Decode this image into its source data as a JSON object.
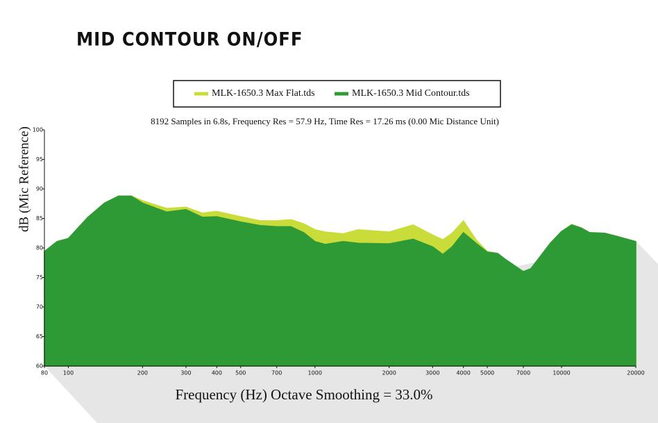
{
  "chart_data": {
    "type": "area",
    "title": "MID CONTOUR ON/OFF",
    "subtitle": "8192 Samples in 6.8s, Frequency Res = 57.9 Hz, Time Res = 17.26 ms (0.00 Mic Distance Unit)",
    "x_label": "Frequency (Hz) Octave Smoothing = 33.0%",
    "y_label": "dB (Mic Reference)",
    "xscale": "log",
    "x": [
      80,
      90,
      100,
      120,
      140,
      160,
      180,
      200,
      250,
      300,
      350,
      400,
      500,
      600,
      700,
      800,
      900,
      1000,
      1100,
      1300,
      1500,
      2000,
      2500,
      3000,
      3300,
      3600,
      4000,
      4500,
      5000,
      5500,
      6000,
      7000,
      7500,
      8000,
      9000,
      10000,
      11000,
      12000,
      13000,
      15000,
      17000,
      20000
    ],
    "series": [
      {
        "name": "MLK-1650.3 Max Flat.tds",
        "color": "#c9dc3a",
        "values": [
          79.4,
          81.1,
          81.6,
          85.2,
          87.6,
          88.8,
          88.8,
          88.0,
          86.7,
          86.9,
          85.9,
          86.2,
          85.3,
          84.6,
          84.6,
          84.8,
          84.1,
          83.1,
          82.7,
          82.4,
          83.1,
          82.7,
          83.9,
          82.2,
          81.4,
          82.5,
          84.6,
          81.4,
          79.4,
          79.1,
          77.8,
          75.6,
          76.2,
          77.9,
          80.8,
          82.8,
          84.0,
          83.4,
          82.6,
          82.5,
          81.9,
          81.1
        ]
      },
      {
        "name": "MLK-1650.3 Mid Contour.tds",
        "color": "#2e9a36",
        "values": [
          79.4,
          81.1,
          81.6,
          85.2,
          87.6,
          88.8,
          88.8,
          87.6,
          86.1,
          86.5,
          85.2,
          85.3,
          84.4,
          83.8,
          83.6,
          83.6,
          82.6,
          81.1,
          80.6,
          81.1,
          80.8,
          80.7,
          81.5,
          80.2,
          78.9,
          80.2,
          82.6,
          80.8,
          79.3,
          79.1,
          77.9,
          76.0,
          76.5,
          78.0,
          80.8,
          82.8,
          83.9,
          83.4,
          82.6,
          82.5,
          81.9,
          81.1
        ]
      }
    ],
    "xlim": [
      80,
      20000
    ],
    "ylim": [
      60,
      100
    ],
    "xticks": [
      80,
      100,
      200,
      300,
      400,
      500,
      700,
      1000,
      2000,
      3000,
      4000,
      5000,
      7000,
      10000,
      20000
    ],
    "yticks": [
      60,
      65,
      70,
      75,
      80,
      85,
      90,
      95,
      100
    ],
    "legend": "top"
  }
}
